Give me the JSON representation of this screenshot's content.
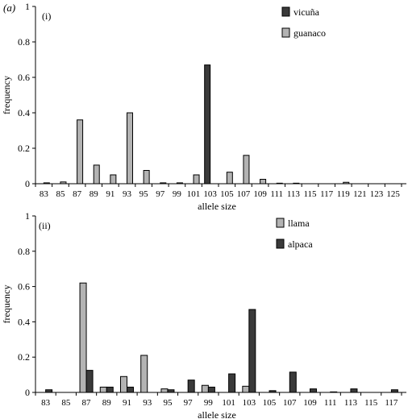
{
  "figure_label": "(a)",
  "chart_data": [
    {
      "type": "bar",
      "panel_label": "(i)",
      "xlabel": "allele size",
      "ylabel": "frequency",
      "ylim": [
        0,
        1
      ],
      "yticks": [
        "0",
        "0.2",
        "0.4",
        "0.6",
        "0.8",
        "1"
      ],
      "grid": false,
      "legend_position": "top-right",
      "categories": [
        "83",
        "85",
        "87",
        "89",
        "91",
        "93",
        "95",
        "97",
        "99",
        "101",
        "103",
        "105",
        "107",
        "109",
        "111",
        "113",
        "115",
        "117",
        "119",
        "121",
        "123",
        "125"
      ],
      "series": [
        {
          "name": "vicuña",
          "color": "#3a3a3a",
          "values": [
            0,
            0,
            0,
            0,
            0,
            0,
            0,
            0,
            0,
            0,
            0.67,
            0,
            0,
            0,
            0,
            0,
            0,
            0,
            0,
            0,
            0,
            0
          ]
        },
        {
          "name": "guanaco",
          "color": "#b3b3b3",
          "values": [
            0.005,
            0.01,
            0.36,
            0.105,
            0.05,
            0.4,
            0.075,
            0.005,
            0.005,
            0.05,
            0,
            0.065,
            0.16,
            0.025,
            0.003,
            0.003,
            0,
            0,
            0.008,
            0,
            0,
            0
          ]
        }
      ]
    },
    {
      "type": "bar",
      "panel_label": "(ii)",
      "xlabel": "allele size",
      "ylabel": "frequency",
      "ylim": [
        0,
        1
      ],
      "yticks": [
        "0",
        "0.2",
        "0.4",
        "0.6",
        "0.8",
        "1"
      ],
      "grid": false,
      "legend_position": "top-right",
      "categories": [
        "83",
        "85",
        "87",
        "89",
        "91",
        "93",
        "95",
        "97",
        "99",
        "101",
        "103",
        "105",
        "107",
        "109",
        "111",
        "113",
        "115",
        "117"
      ],
      "series": [
        {
          "name": "llama",
          "color": "#b3b3b3",
          "values": [
            0,
            0,
            0.62,
            0.03,
            0.09,
            0.21,
            0.02,
            0,
            0.04,
            0,
            0.035,
            0,
            0,
            0,
            0,
            0,
            0,
            0
          ]
        },
        {
          "name": "alpaca",
          "color": "#3a3a3a",
          "values": [
            0.015,
            0,
            0.125,
            0.03,
            0.03,
            0,
            0.015,
            0.07,
            0.03,
            0.105,
            0.47,
            0.01,
            0.115,
            0.02,
            0.003,
            0.02,
            0,
            0.015
          ]
        }
      ]
    }
  ]
}
